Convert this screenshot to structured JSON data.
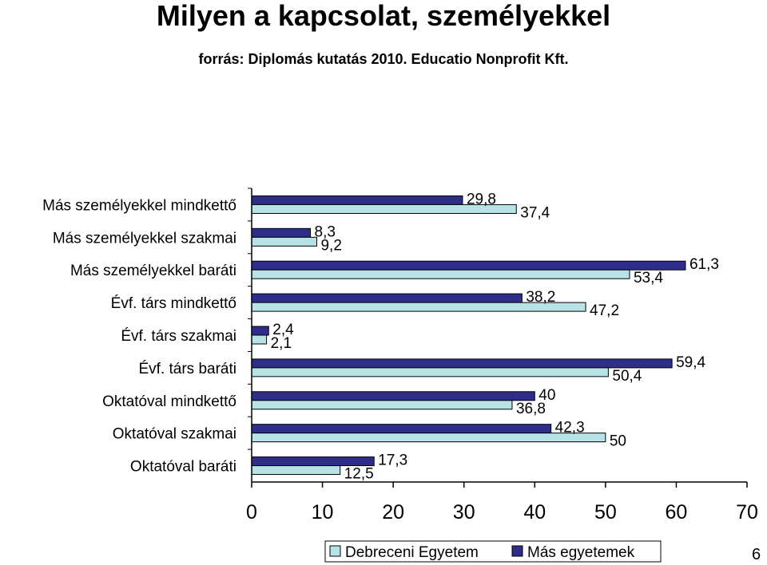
{
  "header": {
    "title": "Milyen a kapcsolat, személyekkel",
    "source": "forrás: Diplomás kutatás 2010. Educatio Nonprofit Kft."
  },
  "page_number": "6",
  "colors": {
    "debrecen": "#b8e3e6",
    "other": "#2e2e8a"
  },
  "chart_data": {
    "type": "bar",
    "orientation": "horizontal",
    "categories": [
      "Más személyekkel mindkettő",
      "Más személyekkel szakmai",
      "Más személyekkel baráti",
      "Évf. társ mindkettő",
      "Évf. társ szakmai",
      "Évf. társ baráti",
      "Oktatóval mindkettő",
      "Oktatóval szakmai",
      "Oktatóval baráti"
    ],
    "series": [
      {
        "name": "Debreceni Egyetem",
        "values": [
          37.4,
          9.2,
          53.4,
          47.2,
          2.1,
          50.4,
          36.8,
          50,
          12.5
        ]
      },
      {
        "name": "Más egyetemek",
        "values": [
          29.8,
          8.3,
          61.3,
          38.2,
          2.4,
          59.4,
          40,
          42.3,
          17.3
        ]
      }
    ],
    "value_labels": {
      "Debreceni Egyetem": [
        "37,4",
        "9,2",
        "53,4",
        "47,2",
        "2,1",
        "50,4",
        "36,8",
        "50",
        "12,5"
      ],
      "Más egyetemek": [
        "29,8",
        "8,3",
        "61,3",
        "38,2",
        "2,4",
        "59,4",
        "40",
        "42,3",
        "17,3"
      ]
    },
    "x_ticks": [
      "0",
      "10",
      "20",
      "30",
      "40",
      "50",
      "60",
      "70"
    ],
    "xlim": [
      0,
      70
    ],
    "grid": false,
    "legend_position": "bottom"
  }
}
